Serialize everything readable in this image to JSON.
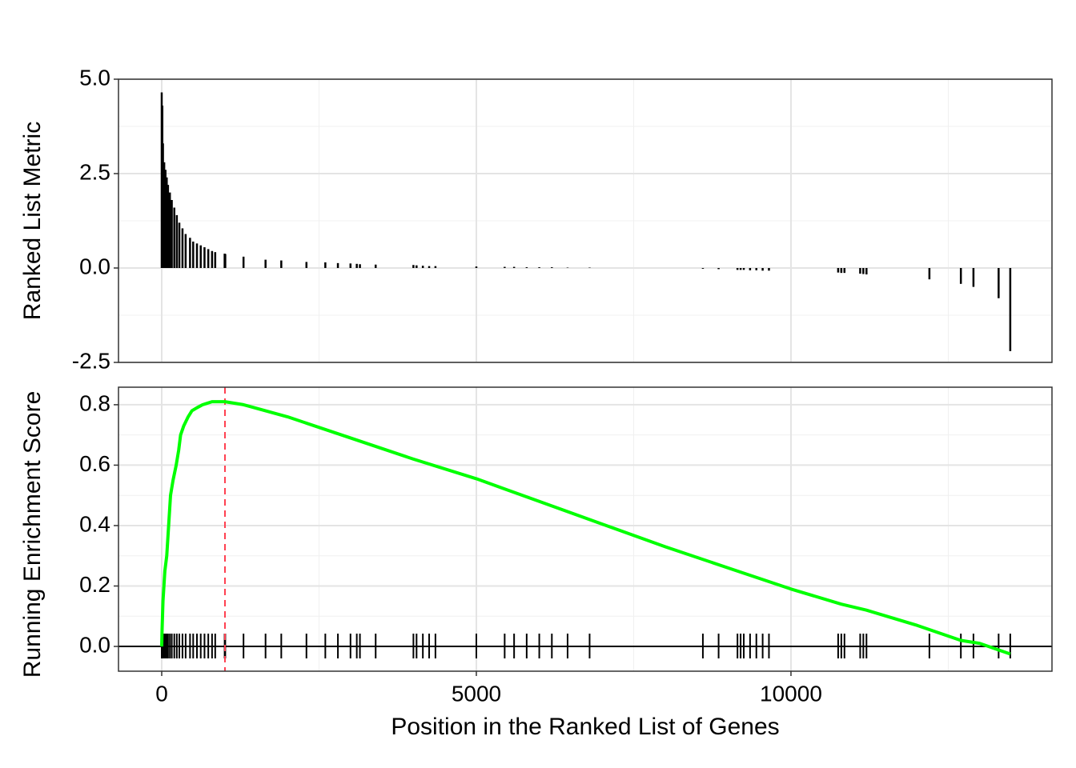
{
  "chart_data": [
    {
      "type": "bar",
      "y_label": "Ranked List Metric",
      "color": "#000000",
      "grid": true,
      "x": [
        0,
        10,
        20,
        40,
        60,
        80,
        100,
        130,
        160,
        200,
        240,
        280,
        330,
        380,
        450,
        500,
        560,
        620,
        680,
        740,
        800,
        850,
        1000,
        1010,
        1300,
        1650,
        1900,
        2300,
        2600,
        2800,
        3000,
        3100,
        3150,
        3400,
        4000,
        4050,
        4150,
        4250,
        4350,
        5000,
        5450,
        5600,
        5800,
        6000,
        6200,
        6450,
        6800,
        8600,
        8850,
        9150,
        9200,
        9250,
        9350,
        9450,
        9550,
        9650,
        10750,
        10800,
        10850,
        11100,
        11150,
        11200,
        12200,
        12700,
        12900,
        13300,
        13485
      ],
      "values": [
        4.65,
        4.3,
        3.3,
        2.8,
        2.6,
        2.4,
        2.2,
        2.0,
        1.8,
        1.6,
        1.4,
        1.2,
        1.05,
        0.9,
        0.8,
        0.7,
        0.65,
        0.6,
        0.55,
        0.5,
        0.45,
        0.42,
        0.38,
        0.37,
        0.3,
        0.22,
        0.2,
        0.16,
        0.15,
        0.13,
        0.12,
        0.11,
        0.1,
        0.09,
        0.08,
        0.07,
        0.06,
        0.05,
        0.05,
        0.04,
        0.03,
        0.03,
        0.02,
        0.02,
        0.02,
        0.01,
        0.01,
        -0.02,
        -0.03,
        -0.05,
        -0.05,
        -0.05,
        -0.06,
        -0.06,
        -0.07,
        -0.07,
        -0.12,
        -0.13,
        -0.13,
        -0.15,
        -0.16,
        -0.17,
        -0.3,
        -0.42,
        -0.5,
        -0.8,
        -2.2
      ],
      "xlim": [
        -687,
        14148
      ],
      "xticks": [
        0,
        5000,
        10000
      ],
      "ylim": [
        -2.5,
        5.0
      ],
      "yticks": [
        {
          "value": 5,
          "label": "5.0"
        },
        {
          "value": 2.5,
          "label": "2.5"
        },
        {
          "value": 0,
          "label": "0.0"
        },
        {
          "value": -2.5,
          "label": "-2.5"
        }
      ]
    },
    {
      "type": "line",
      "y_label": "Running Enrichment Score",
      "x_label": "Position in the Ranked List of Genes",
      "color": "#00ff00",
      "grid": true,
      "x": [
        0,
        5,
        20,
        50,
        80,
        110,
        140,
        180,
        230,
        270,
        300,
        350,
        420,
        480,
        560,
        650,
        800,
        1005,
        1300,
        2000,
        3000,
        4000,
        5000,
        6000,
        7000,
        8000,
        9000,
        10000,
        10800,
        11200,
        12000,
        12700,
        13000,
        13485
      ],
      "values": [
        0,
        0.05,
        0.15,
        0.25,
        0.3,
        0.4,
        0.5,
        0.55,
        0.6,
        0.65,
        0.7,
        0.73,
        0.76,
        0.78,
        0.79,
        0.8,
        0.81,
        0.81,
        0.8,
        0.76,
        0.69,
        0.62,
        0.555,
        0.48,
        0.405,
        0.33,
        0.26,
        0.19,
        0.14,
        0.12,
        0.07,
        0.02,
        0.01,
        -0.025
      ],
      "peak_x": 1005,
      "peak_color": "#ff4050",
      "xlim": [
        -687,
        14148
      ],
      "xticks": [
        0,
        5000,
        10000
      ],
      "ylim": [
        -0.082,
        0.858
      ],
      "yticks": [
        {
          "value": 0,
          "label": "0.0"
        },
        {
          "value": 0.2,
          "label": "0.2"
        },
        {
          "value": 0.4,
          "label": "0.4"
        },
        {
          "value": 0.6,
          "label": "0.6"
        },
        {
          "value": 0.8,
          "label": "0.8"
        }
      ]
    }
  ]
}
